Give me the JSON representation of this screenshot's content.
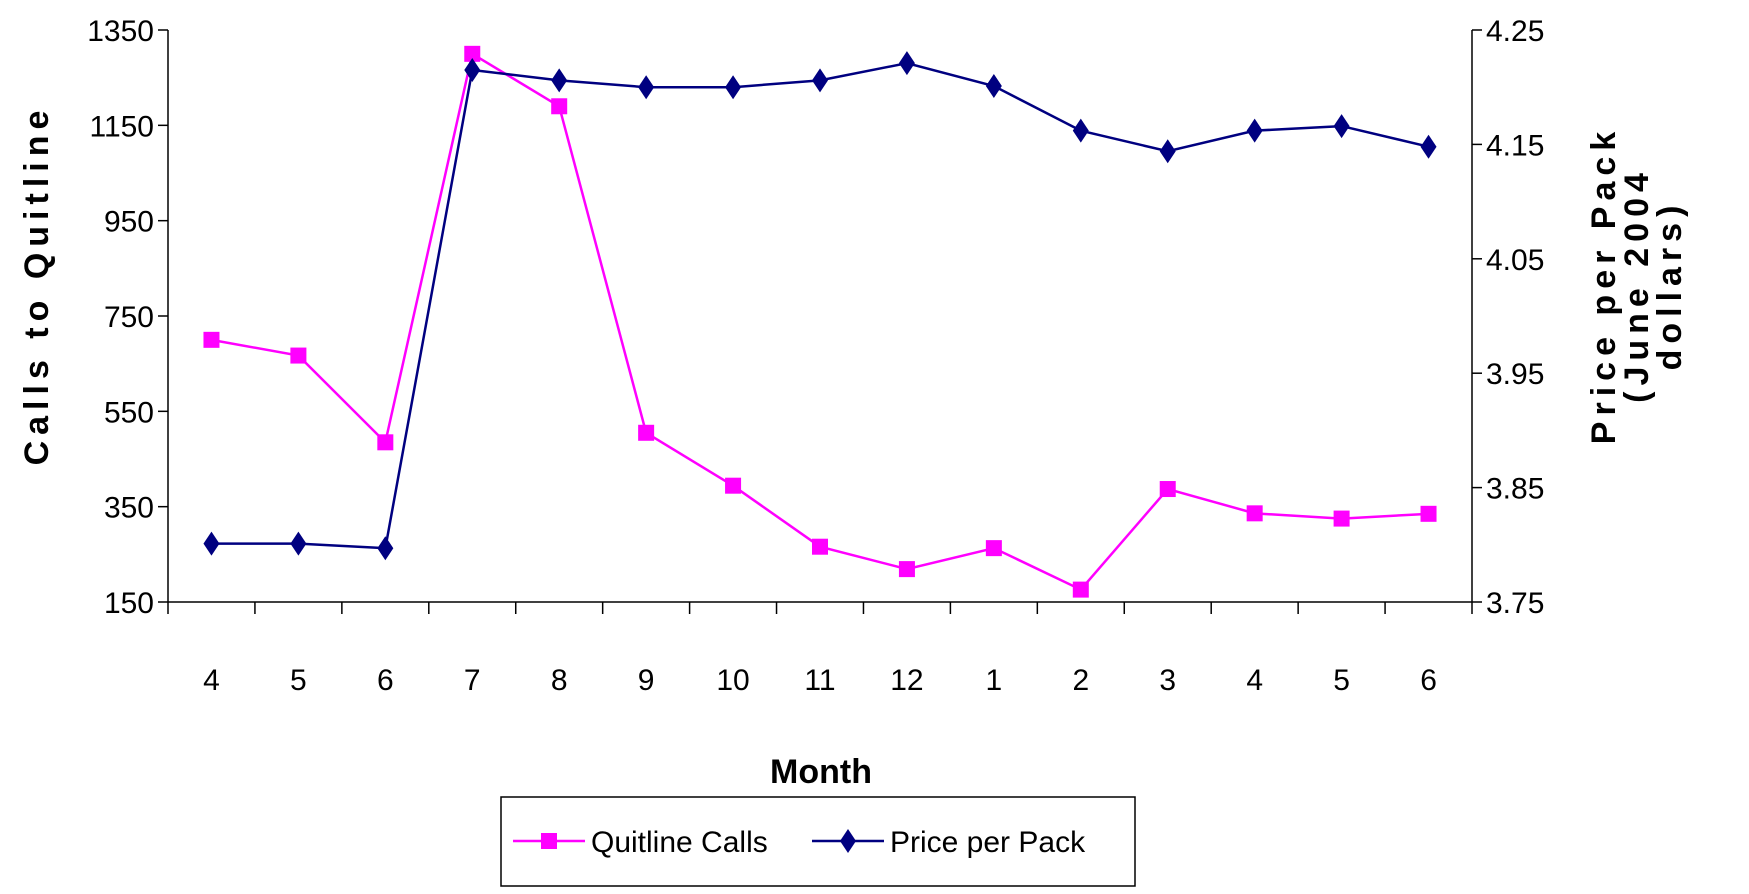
{
  "chart_data": {
    "type": "line",
    "title": "",
    "xlabel": "Month",
    "ylabel_left": "Calls to Quitline",
    "ylabel_right": "Price per Pack (June 2004 dollars)",
    "ylabel_right_line1": "Price per Pack",
    "ylabel_right_line2": "(June 2004",
    "ylabel_right_line3": "dollars)",
    "categories": [
      "4",
      "5",
      "6",
      "7",
      "8",
      "9",
      "10",
      "11",
      "12",
      "1",
      "2",
      "3",
      "4",
      "5",
      "6"
    ],
    "y_left_lim": [
      150,
      1350
    ],
    "y_left_ticks": [
      "150",
      "350",
      "550",
      "750",
      "950",
      "1150",
      "1350"
    ],
    "y_right_lim": [
      3.75,
      4.25
    ],
    "y_right_ticks": [
      "3.75",
      "3.85",
      "3.95",
      "4.05",
      "4.15",
      "4.25"
    ],
    "grid": false,
    "legend_position": "bottom",
    "series": [
      {
        "name": "Quitline Calls",
        "axis": "left",
        "color": "#FF00FF",
        "marker": "square",
        "values": [
          700,
          667,
          485,
          1300,
          1190,
          505,
          394,
          266,
          219,
          263,
          176,
          387,
          336,
          325,
          335
        ]
      },
      {
        "name": "Price per Pack",
        "axis": "right",
        "color": "#000080",
        "marker": "diamond",
        "values": [
          3.801,
          3.801,
          3.797,
          4.215,
          4.206,
          4.2,
          4.2,
          4.206,
          4.221,
          4.201,
          4.162,
          4.144,
          4.162,
          4.166,
          4.148
        ]
      }
    ]
  }
}
